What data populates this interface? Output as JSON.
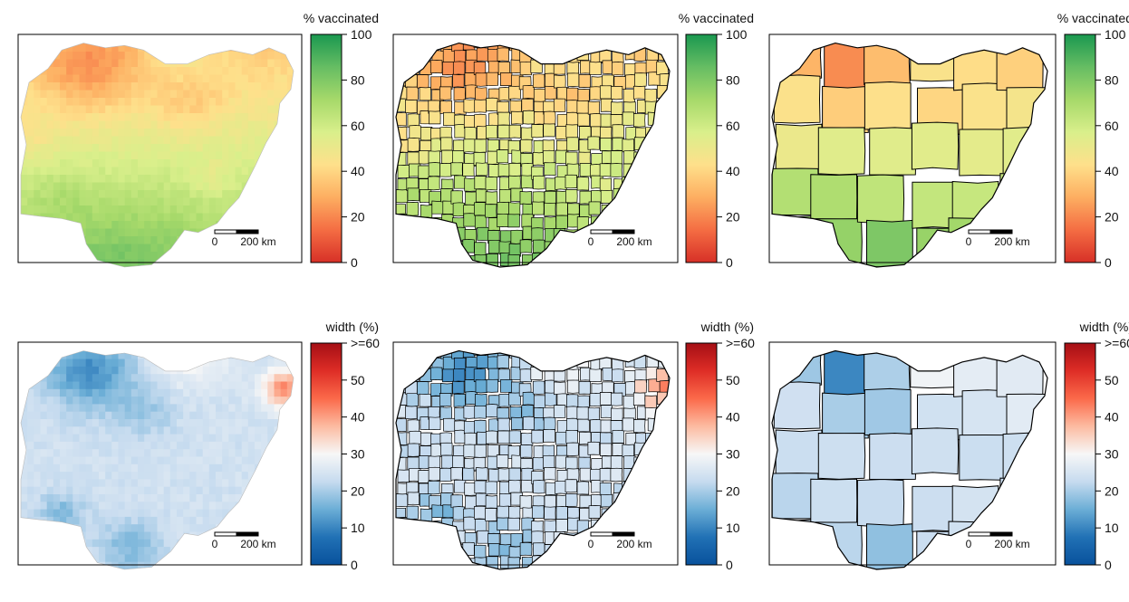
{
  "figure": {
    "rows": [
      {
        "legend": {
          "title": "% vaccinated",
          "ticks": [
            "100",
            "80",
            "60",
            "40",
            "20",
            "0"
          ],
          "palette": [
            "#d73027",
            "#f46d43",
            "#fdae61",
            "#fee08b",
            "#d9ef8b",
            "#a6d96a",
            "#66bd63",
            "#1a9850"
          ]
        },
        "panels": [
          {
            "type": "continuous-surface",
            "level": "pixel",
            "scalebar": {
              "zero": "0",
              "dist": "200 km"
            }
          },
          {
            "type": "choropleth",
            "level": "district",
            "scalebar": {
              "zero": "0",
              "dist": "200 km"
            }
          },
          {
            "type": "choropleth",
            "level": "state",
            "scalebar": {
              "zero": "0",
              "dist": "200 km"
            }
          }
        ]
      },
      {
        "legend": {
          "title": "width (%)",
          "ticks": [
            ">=60",
            "50",
            "40",
            "30",
            "20",
            "10",
            "0"
          ],
          "palette": [
            "#08519c",
            "#2171b5",
            "#6baed6",
            "#c6dbef",
            "#f7f7f7",
            "#fcbba1",
            "#fb6a4a",
            "#de2d26",
            "#a50f15"
          ]
        },
        "panels": [
          {
            "type": "continuous-surface",
            "level": "pixel",
            "scalebar": {
              "zero": "0",
              "dist": "200 km"
            }
          },
          {
            "type": "choropleth",
            "level": "district",
            "scalebar": {
              "zero": "0",
              "dist": "200 km"
            }
          },
          {
            "type": "choropleth",
            "level": "state",
            "scalebar": {
              "zero": "0",
              "dist": "200 km"
            }
          }
        ]
      }
    ]
  }
}
